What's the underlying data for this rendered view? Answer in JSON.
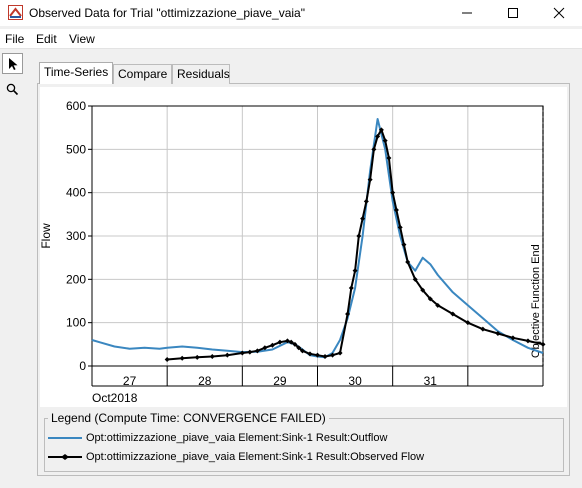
{
  "window": {
    "title": "Observed Data for Trial \"ottimizzazione_piave_vaia\""
  },
  "menu": {
    "file": "File",
    "edit": "Edit",
    "view": "View"
  },
  "tools": [
    {
      "icon": "arrow-pointer-icon"
    },
    {
      "icon": "magnifier-icon"
    }
  ],
  "tabs": {
    "time_series": "Time-Series",
    "compare": "Compare",
    "residuals": "Residuals"
  },
  "legend": {
    "title": "Legend (Compute Time: CONVERGENCE FAILED)",
    "items": [
      "Opt:ottimizzazione_piave_vaia Element:Sink-1 Result:Outflow",
      "Opt:ottimizzazione_piave_vaia Element:Sink-1 Result:Observed Flow"
    ]
  },
  "colors": {
    "outflow": "#3a87c0",
    "observed": "#000000"
  },
  "chart_data": {
    "type": "line",
    "ylabel": "Flow",
    "xlabel": "",
    "ylim": [
      0,
      600
    ],
    "yticks": [
      0,
      100,
      200,
      300,
      400,
      500,
      600
    ],
    "xlim": [
      0,
      6
    ],
    "day_labels": [
      "27",
      "28",
      "29",
      "30",
      "31"
    ],
    "month_label": "Oct2018",
    "annotation": "Objective Function End",
    "annotation_x": 6.0,
    "grid": true,
    "series": [
      {
        "name": "Opt:ottimizzazione_piave_vaia Element:Sink-1 Result:Outflow",
        "style": "line",
        "x": [
          0,
          0.1,
          0.3,
          0.5,
          0.7,
          0.9,
          1.0,
          1.2,
          1.4,
          1.6,
          1.8,
          2.0,
          2.2,
          2.4,
          2.6,
          2.7,
          2.8,
          2.9,
          3.0,
          3.1,
          3.2,
          3.3,
          3.4,
          3.5,
          3.6,
          3.7,
          3.8,
          3.9,
          4.0,
          4.1,
          4.2,
          4.3,
          4.4,
          4.5,
          4.6,
          4.8,
          5.0,
          5.2,
          5.4,
          5.6,
          5.8,
          6.0
        ],
        "y": [
          60,
          55,
          45,
          40,
          42,
          40,
          42,
          45,
          42,
          38,
          35,
          32,
          33,
          38,
          55,
          50,
          38,
          25,
          22,
          20,
          30,
          60,
          110,
          180,
          300,
          450,
          570,
          500,
          380,
          300,
          240,
          220,
          250,
          235,
          210,
          170,
          140,
          110,
          80,
          60,
          42,
          30
        ]
      },
      {
        "name": "Opt:ottimizzazione_piave_vaia Element:Sink-1 Result:Observed Flow",
        "style": "line-markers",
        "x": [
          1.0,
          1.2,
          1.4,
          1.6,
          1.8,
          2.0,
          2.1,
          2.2,
          2.3,
          2.4,
          2.5,
          2.6,
          2.65,
          2.7,
          2.75,
          2.8,
          2.9,
          3.0,
          3.1,
          3.2,
          3.3,
          3.4,
          3.45,
          3.5,
          3.55,
          3.6,
          3.65,
          3.7,
          3.75,
          3.8,
          3.85,
          3.9,
          3.95,
          4.0,
          4.05,
          4.1,
          4.15,
          4.2,
          4.3,
          4.4,
          4.5,
          4.6,
          4.8,
          5.0,
          5.2,
          5.4,
          5.6,
          5.8,
          6.0
        ],
        "y": [
          15,
          18,
          20,
          22,
          25,
          30,
          32,
          35,
          42,
          48,
          55,
          58,
          55,
          50,
          42,
          35,
          28,
          25,
          22,
          25,
          30,
          120,
          180,
          220,
          300,
          340,
          380,
          430,
          500,
          530,
          545,
          520,
          480,
          400,
          360,
          320,
          280,
          240,
          200,
          175,
          155,
          140,
          120,
          100,
          85,
          75,
          65,
          58,
          50
        ]
      }
    ]
  }
}
